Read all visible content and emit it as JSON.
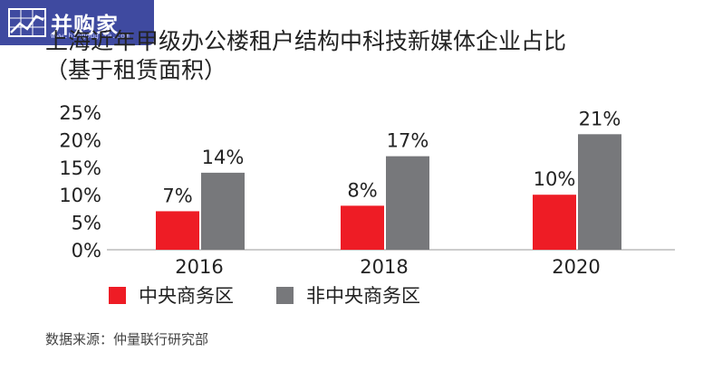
{
  "logo": {
    "text": "并购家",
    "url": "www.bingougjia.com"
  },
  "chart_data": {
    "type": "bar",
    "title": "上海近年甲级办公楼租户结构中科技新媒体企业占比",
    "subtitle": "（基于租赁面积）",
    "categories": [
      "2016",
      "2018",
      "2020"
    ],
    "series": [
      {
        "name": "中央商务区",
        "values": [
          7,
          8,
          10
        ],
        "labels": [
          "7%",
          "8%",
          "10%"
        ],
        "color": "#ee1c25"
      },
      {
        "name": "非中央商务区",
        "values": [
          14,
          17,
          21
        ],
        "labels": [
          "14%",
          "17%",
          "21%"
        ],
        "color": "#77787b"
      }
    ],
    "yticks": [
      0,
      5,
      10,
      15,
      20,
      25
    ],
    "ytick_labels": [
      "0%",
      "5%",
      "10%",
      "15%",
      "20%",
      "25%"
    ],
    "ylim": [
      0,
      25
    ],
    "grid": false,
    "legend_position": "bottom-left",
    "source": "数据来源：仲量联行研究部"
  }
}
